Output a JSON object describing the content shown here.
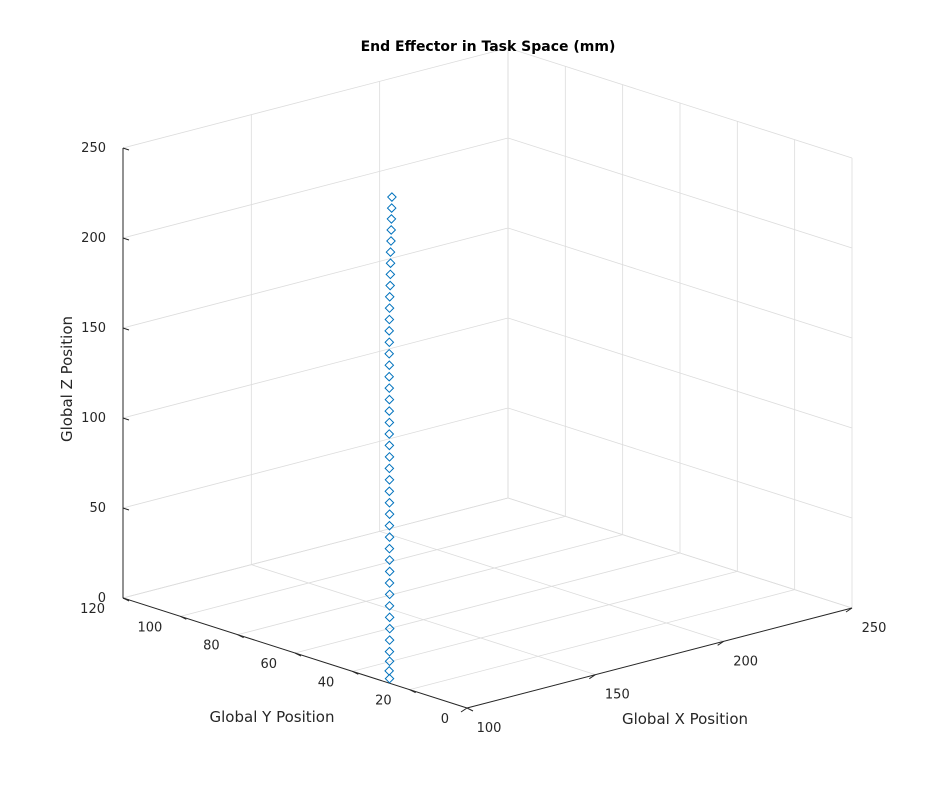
{
  "chart_data": {
    "type": "scatter3d",
    "title": "End Effector in  Task Space (mm)",
    "xlabel": "Global X Position",
    "ylabel": "Global Y Position",
    "zlabel": "Global Z Position",
    "xlim": [
      100,
      250
    ],
    "ylim": [
      0,
      120
    ],
    "zlim": [
      0,
      250
    ],
    "xticks": [
      "100",
      "150",
      "200",
      "250"
    ],
    "yticks": [
      "0",
      "20",
      "40",
      "60",
      "80",
      "100",
      "120"
    ],
    "zticks": [
      "0",
      "50",
      "100",
      "150",
      "200",
      "250"
    ],
    "grid": true,
    "marker": "diamond-open",
    "color": "#0072bd",
    "series": [
      {
        "x": [
          103.1,
          103.4,
          103.9,
          104.3,
          104.8,
          105.3,
          105.6,
          106.0,
          106.5,
          106.9,
          107.4,
          107.8,
          108.2,
          108.7,
          109.1,
          109.6,
          110.0,
          110.4,
          110.9,
          111.3,
          111.8,
          112.2,
          112.6,
          113.1,
          113.5,
          114.0,
          114.4,
          114.8,
          115.3,
          115.7,
          116.2,
          116.6,
          117.0,
          117.4,
          117.8,
          118.2,
          118.5,
          118.8,
          119.0,
          119.3,
          119.5,
          119.7,
          119.8,
          120.0
        ],
        "y": [
          29.8,
          30.2,
          30.5,
          30.9,
          31.3,
          31.7,
          32.0,
          32.4,
          32.8,
          33.2,
          33.6,
          34.0,
          34.4,
          34.8,
          35.2,
          35.6,
          36.0,
          36.4,
          36.8,
          37.2,
          37.6,
          38.0,
          38.4,
          38.8,
          39.2,
          39.6,
          40.0,
          40.4,
          40.8,
          41.2,
          41.6,
          42.0,
          42.3,
          42.6,
          42.9,
          43.1,
          43.3,
          43.5,
          43.7,
          43.8,
          43.9,
          44.0,
          44.0,
          44.1
        ],
        "z": [
          0.0,
          4.0,
          9.0,
          14.0,
          20.0,
          26.0,
          32.0,
          38.0,
          44.0,
          50.0,
          56.0,
          62.0,
          68.0,
          74.0,
          80.0,
          86.0,
          92.0,
          98.0,
          104.0,
          110.0,
          116.0,
          122.0,
          128.0,
          134.0,
          140.0,
          146.0,
          152.0,
          158.0,
          164.0,
          170.0,
          176.0,
          182.0,
          188.0,
          194.0,
          200.0,
          206.0,
          212.0,
          218.0,
          224.0,
          230.0,
          236.0,
          242.0,
          248.0,
          254.0
        ]
      }
    ]
  }
}
